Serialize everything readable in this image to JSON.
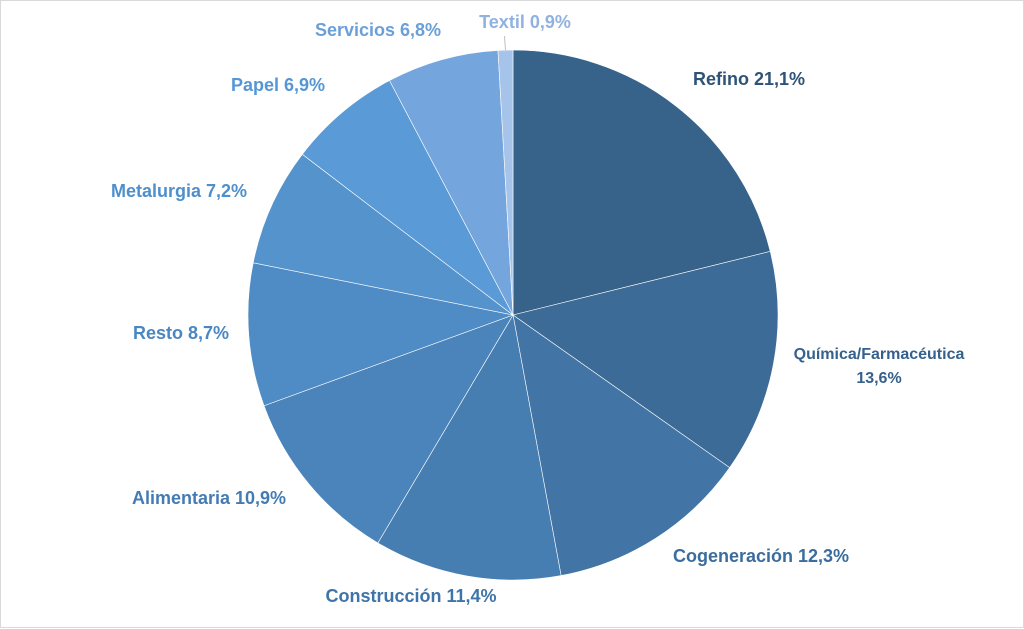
{
  "chart_data": {
    "type": "pie",
    "title": "",
    "start_angle_deg": 0,
    "direction": "clockwise",
    "slices": [
      {
        "label": "Refino",
        "value": 21.1,
        "display": "Refino 21,1%",
        "color": "#37628a",
        "label_color": "#2e5376"
      },
      {
        "label": "Química/Farmacéutica",
        "value": 13.6,
        "display_lines": [
          "Química/Farmacéutica",
          "13,6%"
        ],
        "color": "#3d6b97",
        "label_color": "#35618c"
      },
      {
        "label": "Cogeneración",
        "value": 12.3,
        "display": "Cogeneración 12,3%",
        "color": "#4275a5",
        "label_color": "#3a6d9e"
      },
      {
        "label": "Construcción",
        "value": 11.4,
        "display": "Construcción 11,4%",
        "color": "#477eb1",
        "label_color": "#3f74a8"
      },
      {
        "label": "Alimentaria",
        "value": 10.9,
        "display": "Alimentaria 10,9%",
        "color": "#4a84bb",
        "label_color": "#437cb4"
      },
      {
        "label": "Resto",
        "value": 8.7,
        "display": "Resto 8,7%",
        "color": "#4f8cc5",
        "label_color": "#4a87c2"
      },
      {
        "label": "Metalurgia",
        "value": 7.2,
        "display": "Metalurgia 7,2%",
        "color": "#5493cc",
        "label_color": "#4f8fcc"
      },
      {
        "label": "Papel",
        "value": 6.9,
        "display": "Papel 6,9%",
        "color": "#5a9ad6",
        "label_color": "#5597d6"
      },
      {
        "label": "Servicios",
        "value": 6.8,
        "display": "Servicios 6,8%",
        "color": "#74a5dc",
        "label_color": "#6b9fd8"
      },
      {
        "label": "Textil",
        "value": 0.9,
        "display": "Textil 0,9%",
        "color": "#a6c4ea",
        "label_color": "#8fb2e0"
      }
    ]
  }
}
